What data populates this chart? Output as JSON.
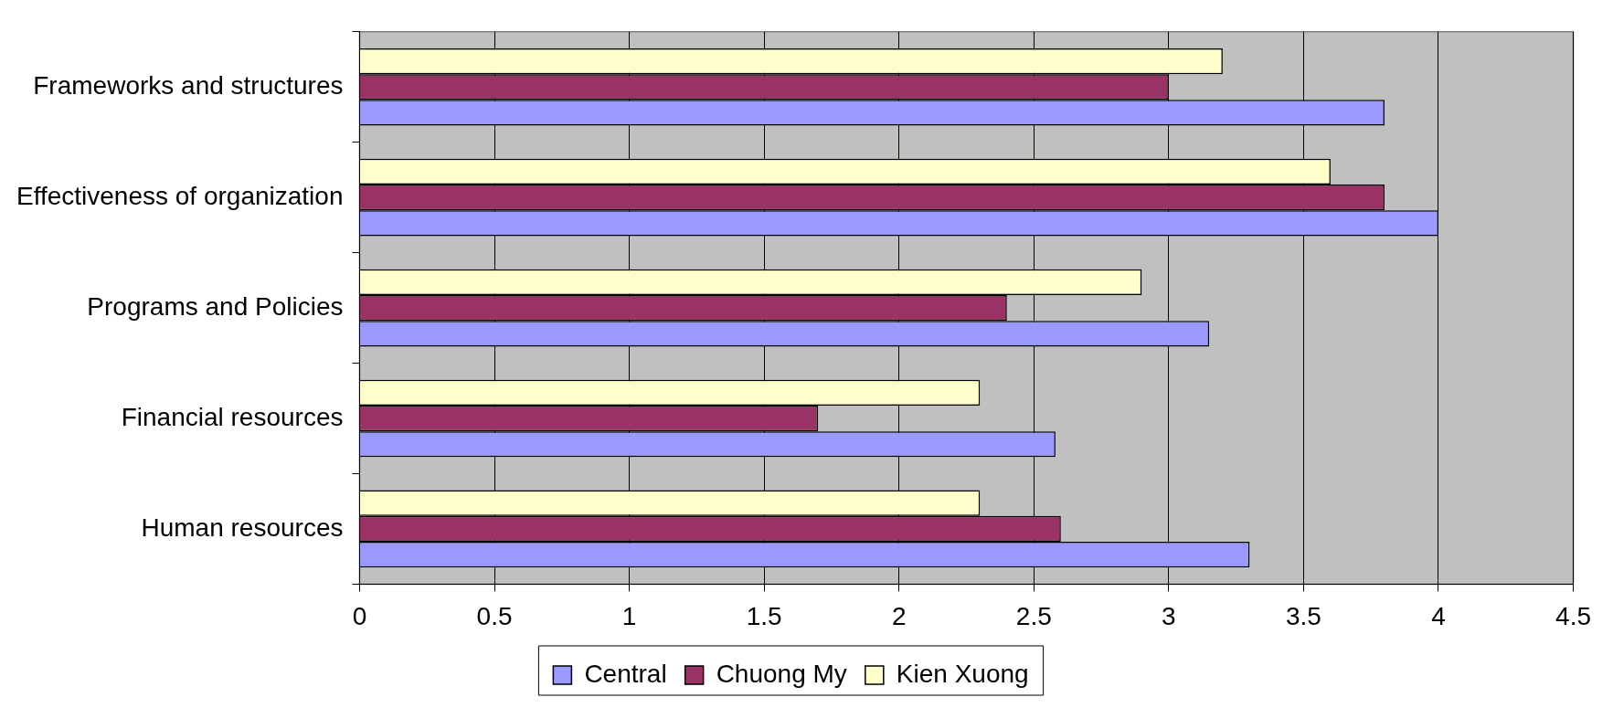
{
  "chart_data": {
    "type": "bar",
    "orientation": "horizontal",
    "categories": [
      "Frameworks and structures",
      "Effectiveness of organization",
      "Programs and Policies",
      "Financial resources",
      "Human resources"
    ],
    "series": [
      {
        "name": "Central",
        "color": "#9999ff",
        "values": [
          3.8,
          4.0,
          3.15,
          2.58,
          3.3
        ]
      },
      {
        "name": "Chuong My",
        "color": "#993366",
        "values": [
          3.0,
          3.8,
          2.4,
          1.7,
          2.6
        ]
      },
      {
        "name": "Kien Xuong",
        "color": "#ffffcc",
        "values": [
          3.2,
          3.6,
          2.9,
          2.3,
          2.3
        ]
      }
    ],
    "xlim": [
      0,
      4.5
    ],
    "xticks": [
      0,
      0.5,
      1,
      1.5,
      2,
      2.5,
      3,
      3.5,
      4,
      4.5
    ],
    "grid": "x",
    "legend": "bottom"
  }
}
